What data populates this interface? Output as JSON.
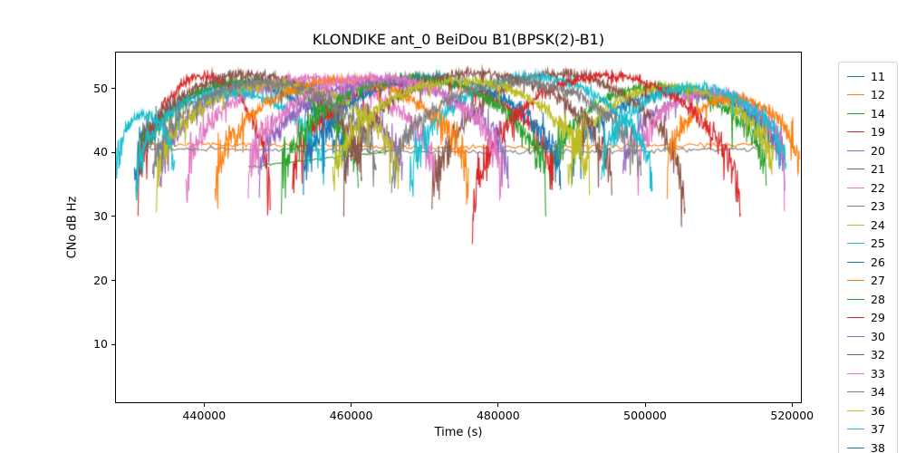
{
  "chart_data": {
    "type": "line",
    "title": "KLONDIKE ant_0 BeiDou B1(BPSK(2)-B1)",
    "xlabel": "Time (s)",
    "ylabel": "CNo dB Hz",
    "xlim": [
      428000,
      521200
    ],
    "ylim": [
      1,
      55.6
    ],
    "xticks": [
      440000,
      460000,
      480000,
      500000,
      520000
    ],
    "yticks": [
      10,
      20,
      30,
      40,
      50
    ],
    "grid": false,
    "legend_position": "outside-right",
    "series": [
      {
        "label": "11",
        "color": "#1f77b4",
        "arcs": [
          {
            "kind": "pass",
            "t0": 430500,
            "t1": 459500,
            "peak": 50.5,
            "lo": 36
          },
          {
            "kind": "pass",
            "t0": 490000,
            "t1": 519000,
            "peak": 49.5,
            "lo": 36
          }
        ]
      },
      {
        "label": "12",
        "color": "#ff7f0e",
        "arcs": [
          {
            "kind": "flat",
            "t0": 431000,
            "t1": 518400,
            "level": 41.0
          }
        ]
      },
      {
        "label": "14",
        "color": "#2ca02c",
        "arcs": [
          {
            "kind": "pass",
            "t0": 430800,
            "t1": 461000,
            "peak": 51.2,
            "lo": 35
          },
          {
            "kind": "pass",
            "t0": 487000,
            "t1": 516500,
            "peak": 50.3,
            "lo": 35
          },
          {
            "kind": "ramp",
            "t0": 446000,
            "t1": 466500,
            "v0": 37.8,
            "v1": 40.3
          }
        ]
      },
      {
        "label": "19",
        "color": "#d62728",
        "arcs": [
          {
            "kind": "pass",
            "t0": 431000,
            "t1": 449000,
            "peak": 52.0,
            "lo": 31
          },
          {
            "kind": "pass",
            "t0": 452000,
            "t1": 487500,
            "peak": 51.3,
            "lo": 34.5
          }
        ]
      },
      {
        "label": "20",
        "color": "#9467bd",
        "arcs": [
          {
            "kind": "pass",
            "t0": 434000,
            "t1": 467000,
            "peak": 51.0,
            "lo": 35
          },
          {
            "kind": "pass",
            "t0": 497000,
            "t1": 519000,
            "peak": 49.0,
            "lo": 36
          }
        ]
      },
      {
        "label": "21",
        "color": "#8c564b",
        "arcs": [
          {
            "kind": "pass",
            "t0": 431000,
            "t1": 461500,
            "peak": 52.2,
            "lo": 36
          },
          {
            "kind": "pass",
            "t0": 471000,
            "t1": 505500,
            "peak": 52.3,
            "lo": 30.5
          }
        ]
      },
      {
        "label": "22",
        "color": "#e377c2",
        "arcs": [
          {
            "kind": "pass",
            "t0": 437500,
            "t1": 471500,
            "peak": 51.6,
            "lo": 35
          },
          {
            "kind": "pass",
            "t0": 499000,
            "t1": 519000,
            "peak": 49.5,
            "lo": 37
          }
        ]
      },
      {
        "label": "23",
        "color": "#7f7f7f",
        "arcs": [
          {
            "kind": "flat",
            "t0": 431000,
            "t1": 518400,
            "level": 40.3
          }
        ]
      },
      {
        "label": "24",
        "color": "#bcbd22",
        "arcs": [
          {
            "kind": "pass",
            "t0": 433500,
            "t1": 466500,
            "peak": 50.6,
            "lo": 35
          },
          {
            "kind": "pass",
            "t0": 489500,
            "t1": 517500,
            "peak": 50.2,
            "lo": 36
          }
        ]
      },
      {
        "label": "25",
        "color": "#17becf",
        "arcs": [
          {
            "kind": "pass",
            "t0": 430700,
            "t1": 456500,
            "peak": 49.5,
            "lo": 35
          },
          {
            "kind": "pass",
            "t0": 468000,
            "t1": 501000,
            "peak": 51.8,
            "lo": 34
          }
        ]
      },
      {
        "label": "26",
        "color": "#1f77b4",
        "arcs": [
          {
            "kind": "pass",
            "t0": 453500,
            "t1": 488500,
            "peak": 51.7,
            "lo": 34
          }
        ]
      },
      {
        "label": "27",
        "color": "#ff7f0e",
        "arcs": [
          {
            "kind": "pass",
            "t0": 441500,
            "t1": 476000,
            "peak": 51.3,
            "lo": 34
          },
          {
            "kind": "pass",
            "t0": 503000,
            "t1": 521000,
            "peak": 48.5,
            "lo": 36
          }
        ]
      },
      {
        "label": "28",
        "color": "#2ca02c",
        "arcs": [
          {
            "kind": "pass",
            "t0": 450500,
            "t1": 486500,
            "peak": 51.6,
            "lo": 33.5
          }
        ]
      },
      {
        "label": "29",
        "color": "#d62728",
        "arcs": [
          {
            "kind": "pass",
            "t0": 476500,
            "t1": 513000,
            "peak": 52.0,
            "lo": 29
          }
        ]
      },
      {
        "label": "30",
        "color": "#9467bd",
        "arcs": [
          {
            "kind": "pass",
            "t0": 447500,
            "t1": 481500,
            "peak": 51.2,
            "lo": 35
          }
        ]
      },
      {
        "label": "32",
        "color": "#8c564b",
        "arcs": [
          {
            "kind": "pass",
            "t0": 459000,
            "t1": 495500,
            "peak": 52.4,
            "lo": 34
          }
        ]
      },
      {
        "label": "33",
        "color": "#e377c2",
        "arcs": [
          {
            "kind": "pass",
            "t0": 446000,
            "t1": 480500,
            "peak": 51.8,
            "lo": 35
          }
        ]
      },
      {
        "label": "34",
        "color": "#7f7f7f",
        "arcs": [
          {
            "kind": "pass",
            "t0": 433000,
            "t1": 463500,
            "peak": 50.9,
            "lo": 36
          },
          {
            "kind": "pass",
            "t0": 465500,
            "t1": 499500,
            "peak": 51.0,
            "lo": 35
          }
        ]
      },
      {
        "label": "36",
        "color": "#bcbd22",
        "arcs": [
          {
            "kind": "pass",
            "t0": 457500,
            "t1": 492500,
            "peak": 51.2,
            "lo": 34
          }
        ]
      },
      {
        "label": "37",
        "color": "#17becf",
        "arcs": [
          {
            "kind": "pass",
            "t0": 428000,
            "t1": 436000,
            "peak": 46.0,
            "lo": 36
          },
          {
            "kind": "pass",
            "t0": 494000,
            "t1": 519200,
            "peak": 50.2,
            "lo": 36
          }
        ]
      },
      {
        "label": "38",
        "color": "#1f77b4",
        "arcs": []
      }
    ]
  }
}
